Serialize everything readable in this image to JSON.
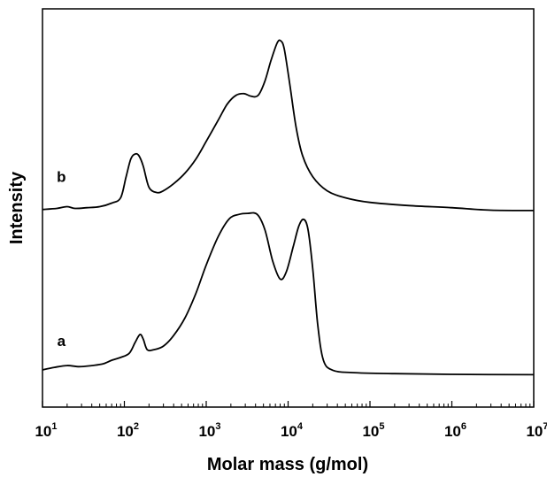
{
  "chart_data": {
    "type": "line",
    "xlabel": "Molar mass (g/mol)",
    "ylabel": "Intensity",
    "x_scale": "log",
    "xlim": [
      10,
      10000000
    ],
    "ylim": [
      0,
      1
    ],
    "grid": false,
    "legend": "none",
    "x_ticks": [
      {
        "base": "10",
        "exp": "1"
      },
      {
        "base": "10",
        "exp": "2"
      },
      {
        "base": "10",
        "exp": "3"
      },
      {
        "base": "10",
        "exp": "4"
      },
      {
        "base": "10",
        "exp": "5"
      },
      {
        "base": "10",
        "exp": "6"
      },
      {
        "base": "10",
        "exp": "7"
      }
    ],
    "series": [
      {
        "name": "b",
        "color": "#000000",
        "points": [
          [
            10,
            0.507
          ],
          [
            15,
            0.51
          ],
          [
            20,
            0.515
          ],
          [
            25,
            0.51
          ],
          [
            35,
            0.512
          ],
          [
            50,
            0.515
          ],
          [
            70,
            0.525
          ],
          [
            90,
            0.54
          ],
          [
            105,
            0.6
          ],
          [
            120,
            0.65
          ],
          [
            135,
            0.664
          ],
          [
            150,
            0.66
          ],
          [
            170,
            0.63
          ],
          [
            200,
            0.57
          ],
          [
            250,
            0.555
          ],
          [
            300,
            0.56
          ],
          [
            400,
            0.58
          ],
          [
            550,
            0.61
          ],
          [
            750,
            0.65
          ],
          [
            1000,
            0.7
          ],
          [
            1400,
            0.76
          ],
          [
            1800,
            0.805
          ],
          [
            2300,
            0.83
          ],
          [
            2900,
            0.835
          ],
          [
            3500,
            0.828
          ],
          [
            4300,
            0.83
          ],
          [
            5200,
            0.87
          ],
          [
            6200,
            0.93
          ],
          [
            7400,
            0.98
          ],
          [
            8200,
            0.984
          ],
          [
            9000,
            0.96
          ],
          [
            10500,
            0.86
          ],
          [
            12500,
            0.74
          ],
          [
            15000,
            0.66
          ],
          [
            20000,
            0.6
          ],
          [
            30000,
            0.56
          ],
          [
            50000,
            0.54
          ],
          [
            100000,
            0.527
          ],
          [
            300000,
            0.518
          ],
          [
            1000000,
            0.512
          ],
          [
            3000000,
            0.505
          ],
          [
            10000000,
            0.504
          ]
        ]
      },
      {
        "name": "a",
        "color": "#000000",
        "points": [
          [
            10,
            0.053
          ],
          [
            14,
            0.06
          ],
          [
            20,
            0.065
          ],
          [
            28,
            0.062
          ],
          [
            40,
            0.065
          ],
          [
            55,
            0.07
          ],
          [
            70,
            0.08
          ],
          [
            90,
            0.088
          ],
          [
            115,
            0.1
          ],
          [
            135,
            0.13
          ],
          [
            155,
            0.153
          ],
          [
            170,
            0.14
          ],
          [
            190,
            0.11
          ],
          [
            230,
            0.11
          ],
          [
            300,
            0.12
          ],
          [
            400,
            0.15
          ],
          [
            550,
            0.2
          ],
          [
            750,
            0.27
          ],
          [
            1000,
            0.35
          ],
          [
            1400,
            0.43
          ],
          [
            1900,
            0.48
          ],
          [
            2500,
            0.493
          ],
          [
            3200,
            0.496
          ],
          [
            4200,
            0.493
          ],
          [
            5200,
            0.45
          ],
          [
            6500,
            0.36
          ],
          [
            8000,
            0.31
          ],
          [
            9500,
            0.33
          ],
          [
            11500,
            0.4
          ],
          [
            13500,
            0.46
          ],
          [
            15500,
            0.479
          ],
          [
            17500,
            0.45
          ],
          [
            20000,
            0.34
          ],
          [
            23000,
            0.18
          ],
          [
            27000,
            0.08
          ],
          [
            35000,
            0.052
          ],
          [
            60000,
            0.045
          ],
          [
            200000,
            0.042
          ],
          [
            1000000,
            0.04
          ],
          [
            10000000,
            0.039
          ]
        ]
      }
    ],
    "annotations": [
      {
        "text": "b",
        "x": 17,
        "y": 0.585
      },
      {
        "text": "a",
        "x": 17,
        "y": 0.12
      }
    ]
  }
}
